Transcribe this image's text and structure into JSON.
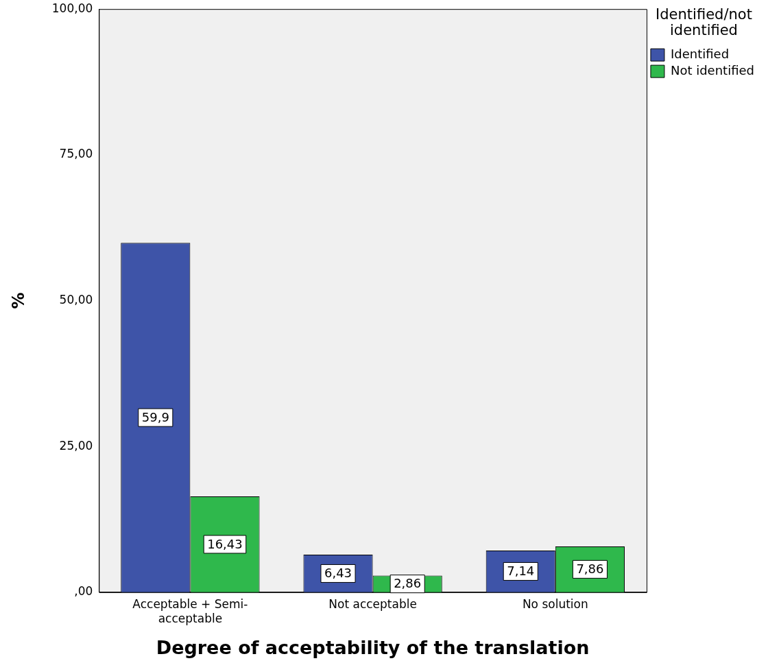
{
  "chart_data": {
    "type": "bar",
    "xlabel": "Degree of acceptability of the translation",
    "ylabel": "%",
    "legend_title": "Identified/not identified",
    "categories": [
      "Acceptable + Semi-acceptable",
      "Not acceptable",
      "No solution"
    ],
    "series": [
      {
        "name": "Identified",
        "color": "#3e54a8",
        "values": [
          59.9,
          6.43,
          7.14
        ],
        "value_labels": [
          "59,9",
          "6,43",
          "7,14"
        ]
      },
      {
        "name": "Not identified",
        "color": "#2fb84c",
        "values": [
          16.43,
          2.86,
          7.86
        ],
        "value_labels": [
          "16,43",
          "2,86",
          "7,86"
        ]
      }
    ],
    "ylim": [
      0,
      100
    ],
    "yticks": [
      {
        "value": 0,
        "label": ",00"
      },
      {
        "value": 25,
        "label": "25,00"
      },
      {
        "value": 50,
        "label": "50,00"
      },
      {
        "value": 75,
        "label": "75,00"
      },
      {
        "value": 100,
        "label": "100,00"
      }
    ],
    "grid": false,
    "legend": "top right"
  }
}
